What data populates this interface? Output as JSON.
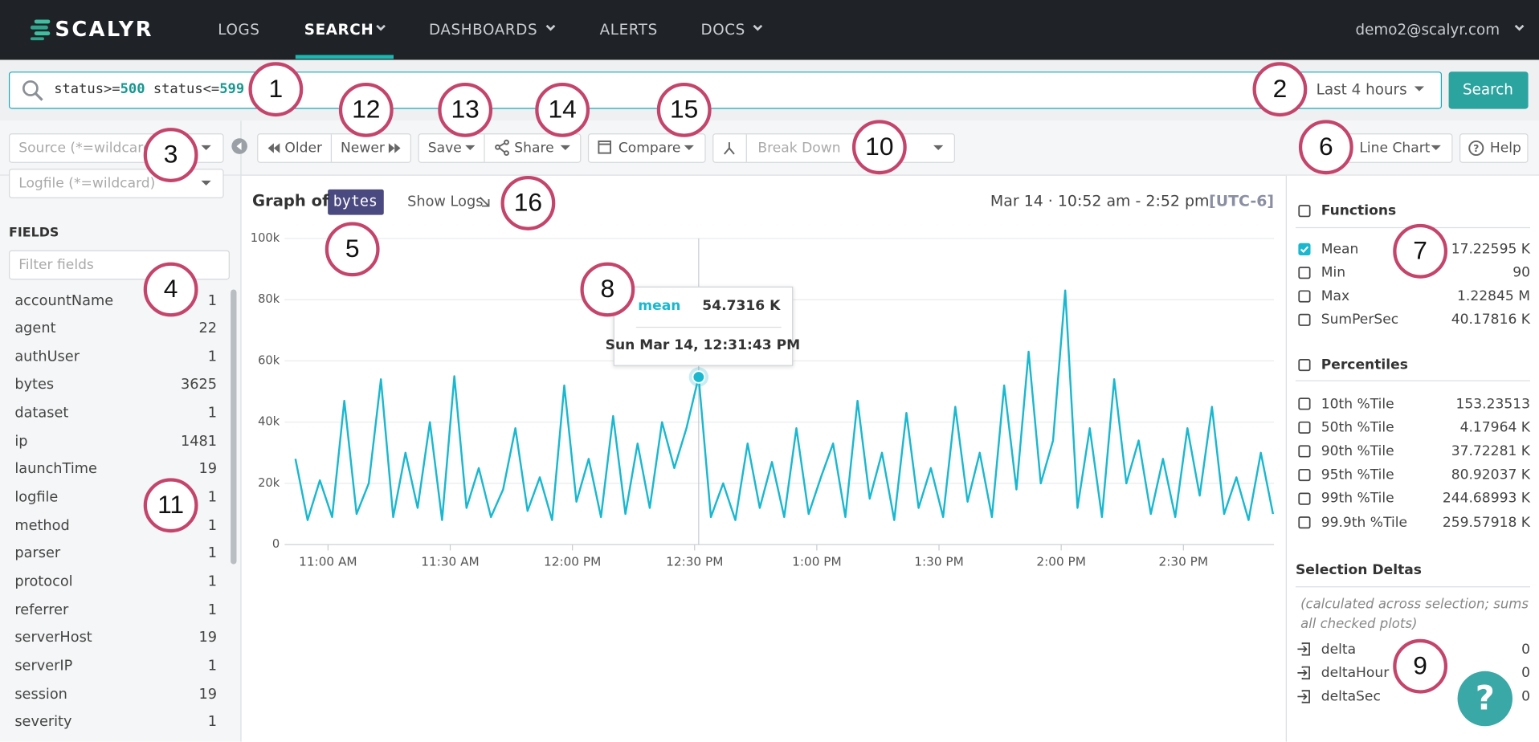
{
  "nav": {
    "logo": "SCALYR",
    "items": [
      "LOGS",
      "SEARCH",
      "DASHBOARDS",
      "ALERTS",
      "DOCS"
    ],
    "user": "demo2@scalyr.com"
  },
  "search": {
    "query": [
      "status>=",
      "500",
      " status<=",
      "599"
    ],
    "time_range": "Last 4 hours",
    "button": "Search"
  },
  "toolbar": {
    "older": "Older",
    "newer": "Newer",
    "save": "Save",
    "share": "Share",
    "compare": "Compare",
    "break_down": "Break Down",
    "chart_type": "Line Chart",
    "help": "Help"
  },
  "sidebar": {
    "source": "Source (*=wildcard)",
    "logfile": "Logfile (*=wildcard)",
    "fields_heading": "FIELDS",
    "filter": "Filter fields",
    "fields": [
      {
        "name": "accountName",
        "count": 1
      },
      {
        "name": "agent",
        "count": 22
      },
      {
        "name": "authUser",
        "count": 1
      },
      {
        "name": "bytes",
        "count": 3625
      },
      {
        "name": "dataset",
        "count": 1
      },
      {
        "name": "ip",
        "count": 1481
      },
      {
        "name": "launchTime",
        "count": 19
      },
      {
        "name": "logfile",
        "count": 1
      },
      {
        "name": "method",
        "count": 1
      },
      {
        "name": "parser",
        "count": 1
      },
      {
        "name": "protocol",
        "count": 1
      },
      {
        "name": "referrer",
        "count": 1
      },
      {
        "name": "serverHost",
        "count": 19
      },
      {
        "name": "serverIP",
        "count": 1
      },
      {
        "name": "session",
        "count": 19
      },
      {
        "name": "severity",
        "count": 1
      }
    ]
  },
  "graph_header": {
    "label": "Graph of",
    "field": "bytes",
    "show_logs": "Show Logs",
    "time_span": "Mar 14 · 10:52 am - 2:52 pm",
    "timezone": "[UTC-6]"
  },
  "tooltip": {
    "name": "mean",
    "value": "54.7316 K",
    "time": "Sun Mar 14, 12:31:43 PM"
  },
  "chart_data": {
    "type": "line",
    "x": [
      "10:52 AM",
      "10:55 AM",
      "10:58 AM",
      "11:01 AM",
      "11:04 AM",
      "11:07 AM",
      "11:10 AM",
      "11:13 AM",
      "11:16 AM",
      "11:19 AM",
      "11:22 AM",
      "11:25 AM",
      "11:28 AM",
      "11:31 AM",
      "11:34 AM",
      "11:37 AM",
      "11:40 AM",
      "11:43 AM",
      "11:46 AM",
      "11:49 AM",
      "11:52 AM",
      "11:55 AM",
      "11:58 AM",
      "12:01 PM",
      "12:04 PM",
      "12:07 PM",
      "12:10 PM",
      "12:13 PM",
      "12:16 PM",
      "12:19 PM",
      "12:22 PM",
      "12:25 PM",
      "12:28 PM",
      "12:31 PM",
      "12:34 PM",
      "12:37 PM",
      "12:40 PM",
      "12:43 PM",
      "12:46 PM",
      "12:49 PM",
      "12:52 PM",
      "12:55 PM",
      "12:58 PM",
      "1:01 PM",
      "1:04 PM",
      "1:07 PM",
      "1:10 PM",
      "1:13 PM",
      "1:16 PM",
      "1:19 PM",
      "1:22 PM",
      "1:25 PM",
      "1:28 PM",
      "1:31 PM",
      "1:34 PM",
      "1:37 PM",
      "1:40 PM",
      "1:43 PM",
      "1:46 PM",
      "1:49 PM",
      "1:52 PM",
      "1:55 PM",
      "1:58 PM",
      "2:01 PM",
      "2:04 PM",
      "2:07 PM",
      "2:10 PM",
      "2:13 PM",
      "2:16 PM",
      "2:19 PM",
      "2:22 PM",
      "2:25 PM",
      "2:28 PM",
      "2:31 PM",
      "2:34 PM",
      "2:37 PM",
      "2:40 PM",
      "2:43 PM",
      "2:46 PM",
      "2:49 PM",
      "2:52 PM"
    ],
    "series": [
      {
        "name": "mean",
        "color": "#1ab8cf",
        "values": [
          28000,
          8000,
          21000,
          9000,
          47000,
          10000,
          20000,
          54000,
          9000,
          30000,
          12000,
          40000,
          8000,
          55000,
          12000,
          25000,
          9000,
          18000,
          38000,
          11000,
          22000,
          8000,
          52000,
          14000,
          28000,
          9000,
          42000,
          10000,
          33000,
          12000,
          40000,
          25000,
          38000,
          54731.6,
          9000,
          20000,
          8000,
          33000,
          12000,
          27000,
          9000,
          38000,
          10000,
          22000,
          33000,
          9000,
          47000,
          15000,
          30000,
          8000,
          43000,
          12000,
          25000,
          9000,
          45000,
          14000,
          30000,
          9000,
          52000,
          18000,
          63000,
          20000,
          34000,
          83000,
          12000,
          38000,
          9000,
          54000,
          20000,
          34000,
          10000,
          28000,
          9000,
          38000,
          16000,
          45000,
          10000,
          22000,
          8000,
          30000,
          10000
        ]
      }
    ],
    "xlim": [
      "10:52 AM",
      "2:52 PM"
    ],
    "xticks": [
      "11:00 AM",
      "11:30 AM",
      "12:00 PM",
      "12:30 PM",
      "1:00 PM",
      "1:30 PM",
      "2:00 PM",
      "2:30 PM"
    ],
    "ylim": [
      0,
      100000
    ],
    "yticks": [
      0,
      {
        "value": 20000,
        "label": "20k"
      },
      {
        "value": 40000,
        "label": "40k"
      },
      {
        "value": 60000,
        "label": "60k"
      },
      {
        "value": 80000,
        "label": "80k"
      },
      {
        "value": 100000,
        "label": "100k"
      }
    ],
    "grid": true
  },
  "stats": {
    "functions_heading": "Functions",
    "functions": [
      {
        "name": "Mean",
        "value": "17.22595 K",
        "checked": true
      },
      {
        "name": "Min",
        "value": "90",
        "checked": false
      },
      {
        "name": "Max",
        "value": "1.22845 M",
        "checked": false
      },
      {
        "name": "SumPerSec",
        "value": "40.17816 K",
        "checked": false
      }
    ],
    "percentiles_heading": "Percentiles",
    "percentiles": [
      {
        "name": "10th %Tile",
        "value": "153.23513"
      },
      {
        "name": "50th %Tile",
        "value": "4.17964 K"
      },
      {
        "name": "90th %Tile",
        "value": "37.72281 K"
      },
      {
        "name": "95th %Tile",
        "value": "80.92037 K"
      },
      {
        "name": "99th %Tile",
        "value": "244.68993 K"
      },
      {
        "name": "99.9th %Tile",
        "value": "259.57918 K"
      }
    ],
    "deltas_heading": "Selection Deltas",
    "deltas_note": "(calculated across selection; sums all checked plots)",
    "deltas": [
      {
        "name": "delta",
        "value": 0
      },
      {
        "name": "deltaHour",
        "value": 0
      },
      {
        "name": "deltaSec",
        "value": 0
      }
    ]
  },
  "callouts": [
    "1",
    "2",
    "3",
    "4",
    "5",
    "6",
    "7",
    "8",
    "9",
    "10",
    "11",
    "12",
    "13",
    "14",
    "15",
    "16"
  ]
}
